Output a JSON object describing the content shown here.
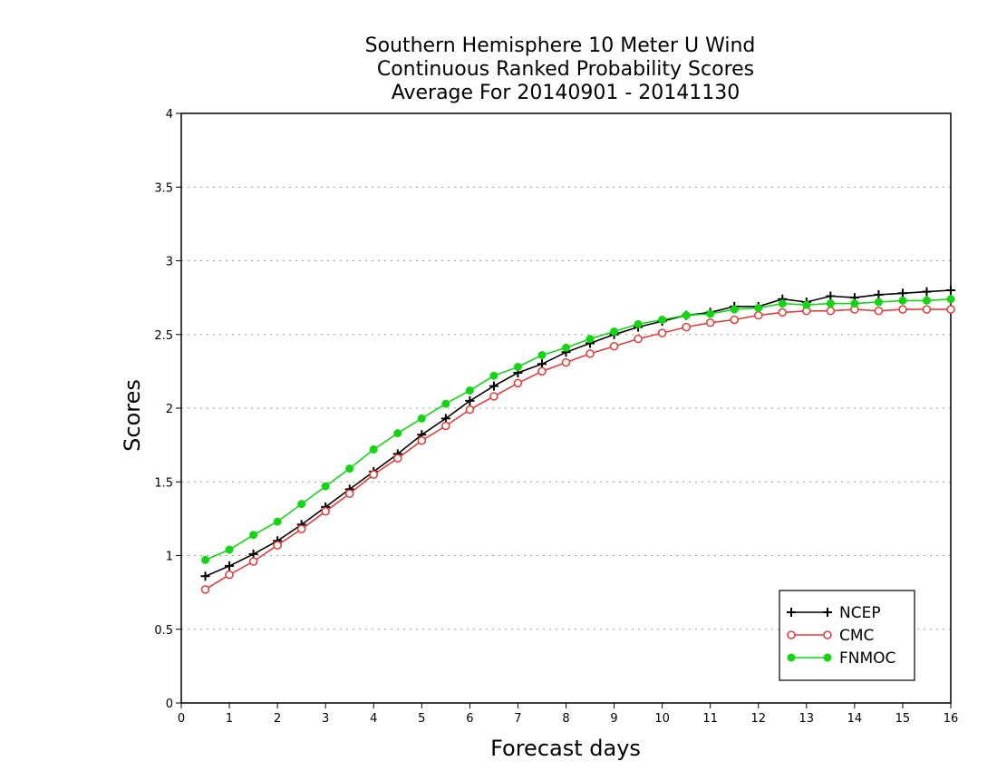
{
  "chart_data": {
    "type": "line",
    "title_lines": [
      "Southern Hemisphere 10 Meter U Wind",
      "Continuous Ranked Probability Scores",
      "Average For 20140901 - 20141130"
    ],
    "xlabel": "Forecast days",
    "ylabel": "Scores",
    "xlim": [
      0,
      16
    ],
    "ylim": [
      0,
      4
    ],
    "x_ticks": [
      0,
      1,
      2,
      3,
      4,
      5,
      6,
      7,
      8,
      9,
      10,
      11,
      12,
      13,
      14,
      15,
      16
    ],
    "y_ticks": [
      0,
      0.5,
      1,
      1.5,
      2,
      2.5,
      3,
      3.5,
      4
    ],
    "y_tick_labels": [
      "0",
      "0.5",
      "1",
      "1.5",
      "2",
      "2.5",
      "3",
      "3.5",
      "4"
    ],
    "grid": "horizontal dotted",
    "legend_position": "bottom-right",
    "x": [
      0.5,
      1,
      1.5,
      2,
      2.5,
      3,
      3.5,
      4,
      4.5,
      5,
      5.5,
      6,
      6.5,
      7,
      7.5,
      8,
      8.5,
      9,
      9.5,
      10,
      10.5,
      11,
      11.5,
      12,
      12.5,
      13,
      13.5,
      14,
      14.5,
      15,
      15.5,
      16
    ],
    "series": [
      {
        "name": "NCEP",
        "color": "#000000",
        "marker": "plus",
        "values": [
          0.86,
          0.93,
          1.01,
          1.1,
          1.21,
          1.33,
          1.45,
          1.57,
          1.69,
          1.82,
          1.93,
          2.05,
          2.15,
          2.24,
          2.3,
          2.38,
          2.44,
          2.5,
          2.55,
          2.59,
          2.63,
          2.65,
          2.69,
          2.69,
          2.74,
          2.72,
          2.76,
          2.75,
          2.77,
          2.78,
          2.79,
          2.8
        ]
      },
      {
        "name": "CMC",
        "color": "#e0403c",
        "marker": "open-circle",
        "values": [
          0.77,
          0.87,
          0.96,
          1.07,
          1.18,
          1.3,
          1.42,
          1.55,
          1.66,
          1.78,
          1.88,
          1.99,
          2.08,
          2.17,
          2.25,
          2.31,
          2.37,
          2.42,
          2.47,
          2.51,
          2.55,
          2.58,
          2.6,
          2.63,
          2.65,
          2.66,
          2.66,
          2.67,
          2.66,
          2.67,
          2.67,
          2.67
        ]
      },
      {
        "name": "FNMOC",
        "color": "#11d611",
        "marker": "filled-circle",
        "values": [
          0.97,
          1.04,
          1.14,
          1.23,
          1.35,
          1.47,
          1.59,
          1.72,
          1.83,
          1.93,
          2.03,
          2.12,
          2.22,
          2.28,
          2.36,
          2.41,
          2.47,
          2.52,
          2.57,
          2.6,
          2.63,
          2.64,
          2.67,
          2.68,
          2.71,
          2.7,
          2.71,
          2.71,
          2.72,
          2.73,
          2.73,
          2.74
        ]
      }
    ]
  }
}
